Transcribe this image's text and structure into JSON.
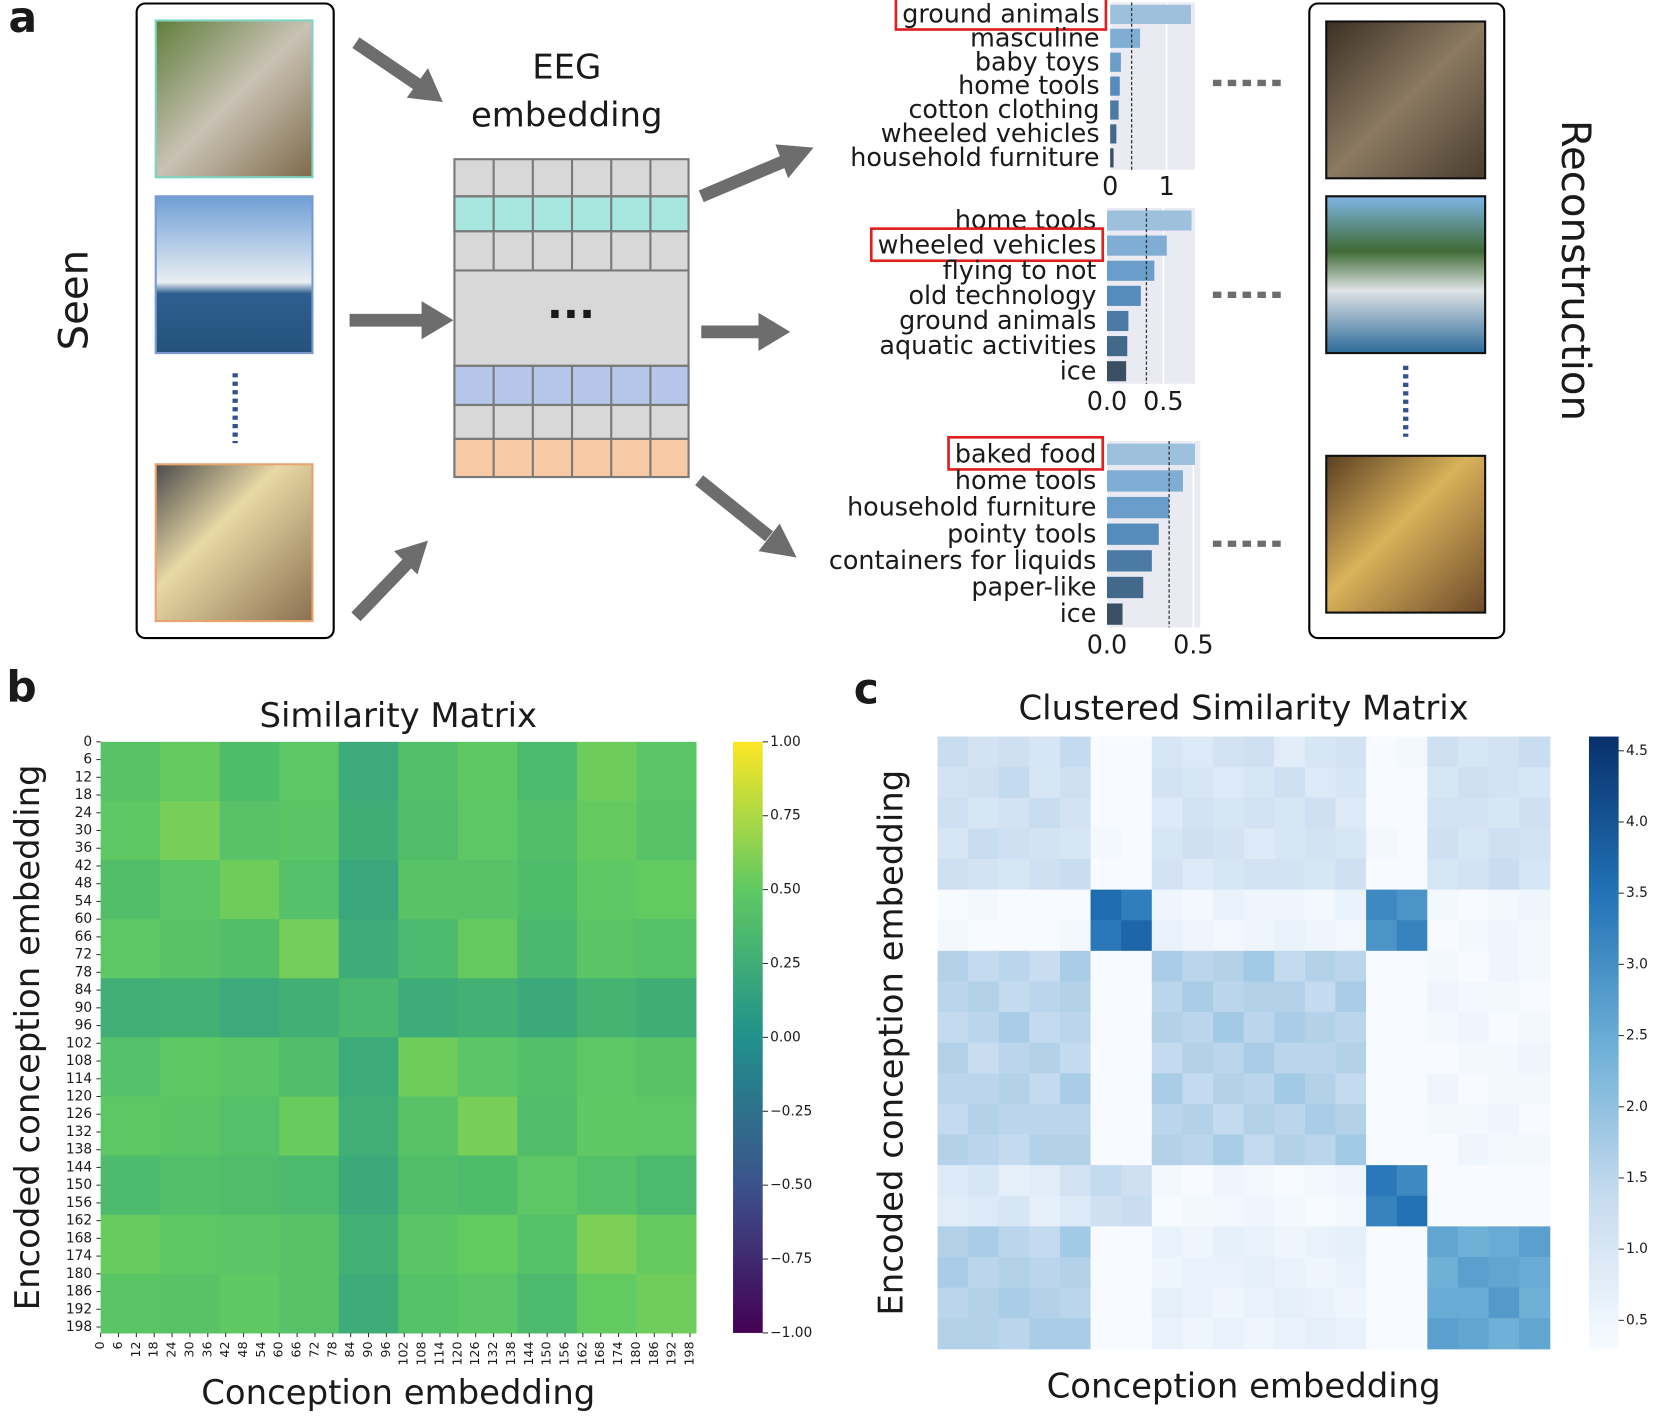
{
  "panel_labels": [
    "a",
    "b",
    "c"
  ],
  "diagram": {
    "seen_label": "Seen",
    "embedding_label_lines": [
      "EEG",
      "embedding"
    ],
    "ellipsis": "...",
    "reconstruction_label": "Reconstruction"
  },
  "chart_data": [
    {
      "type": "barh",
      "categories": [
        "ground animals",
        "masculine",
        "baby toys",
        "home tools",
        "cotton clothing",
        "wheeled vehicles",
        "household furniture"
      ],
      "values": [
        1.43,
        0.53,
        0.19,
        0.17,
        0.15,
        0.11,
        0.06
      ],
      "colors": [
        "#9dc0dd",
        "#7fadd4",
        "#6a9dc9",
        "#568cbb",
        "#4b7aa5",
        "#42688a",
        "#3a4f63"
      ],
      "xlim": [
        0,
        1.5
      ],
      "xticks": [
        0,
        1
      ],
      "reference_line": 0.38,
      "highlight": 0
    },
    {
      "type": "barh",
      "categories": [
        "home tools",
        "wheeled vehicles",
        "flying to not",
        "old technology",
        "ground animals",
        "aquatic activities",
        "ice"
      ],
      "values": [
        0.75,
        0.53,
        0.42,
        0.3,
        0.19,
        0.18,
        0.17
      ],
      "colors": [
        "#9dc0dd",
        "#7fadd4",
        "#6a9dc9",
        "#568cbb",
        "#4b7aa5",
        "#42688a",
        "#3a4f63"
      ],
      "xlim": [
        0,
        0.78
      ],
      "xticks": [
        {
          "value": 0,
          "label": "0.0"
        },
        0.5
      ],
      "reference_line": 0.35,
      "highlight": 1
    },
    {
      "type": "barh",
      "categories": [
        "baked food",
        "home tools",
        "household furniture",
        "pointy tools",
        "containers for liquids",
        "paper-like",
        "ice"
      ],
      "values": [
        0.51,
        0.44,
        0.36,
        0.3,
        0.26,
        0.21,
        0.09
      ],
      "colors": [
        "#9dc0dd",
        "#7fadd4",
        "#6a9dc9",
        "#568cbb",
        "#4b7aa5",
        "#42688a",
        "#3a4f63"
      ],
      "xlim": [
        0,
        0.54
      ],
      "xticks": [
        {
          "value": 0,
          "label": "0.0"
        },
        0.5
      ],
      "reference_line": 0.36,
      "highlight": 0
    },
    {
      "type": "heatmap",
      "title": "Similarity Matrix",
      "x_label": "Conception embedding",
      "y_label": "Encoded conception embedding",
      "xlim": [
        0,
        200
      ],
      "ylim": [
        0,
        200
      ],
      "xticks": [
        0,
        6,
        12,
        18,
        24,
        30,
        36,
        42,
        48,
        54,
        60,
        66,
        72,
        78,
        84,
        90,
        96,
        102,
        108,
        114,
        120,
        126,
        132,
        138,
        144,
        150,
        156,
        162,
        168,
        174,
        180,
        186,
        192,
        198
      ],
      "yticks": [
        0,
        6,
        12,
        18,
        24,
        30,
        36,
        42,
        48,
        54,
        60,
        66,
        72,
        78,
        84,
        90,
        96,
        102,
        108,
        114,
        120,
        126,
        132,
        138,
        144,
        150,
        156,
        162,
        168,
        174,
        180,
        186,
        192,
        198
      ],
      "colormap": "viridis",
      "clim": [
        -1,
        1
      ],
      "cticks": [
        {
          "value": 1,
          "label": "1.00"
        },
        {
          "value": 0.75,
          "label": "0.75"
        },
        {
          "value": 0.5,
          "label": "0.50"
        },
        {
          "value": 0.25,
          "label": "0.25"
        },
        {
          "value": 0,
          "label": "0.00"
        },
        {
          "value": -0.25,
          "label": "−0.25"
        },
        {
          "value": -0.5,
          "label": "−0.50"
        },
        {
          "value": -0.75,
          "label": "−0.75"
        },
        {
          "value": -1,
          "label": "−1.00"
        }
      ],
      "values": [
        [
          0.45,
          0.52,
          0.38,
          0.48,
          0.22,
          0.41,
          0.5,
          0.36,
          0.55,
          0.47
        ],
        [
          0.5,
          0.58,
          0.44,
          0.46,
          0.25,
          0.39,
          0.48,
          0.4,
          0.52,
          0.44
        ],
        [
          0.4,
          0.47,
          0.55,
          0.42,
          0.2,
          0.45,
          0.44,
          0.38,
          0.49,
          0.51
        ],
        [
          0.48,
          0.44,
          0.4,
          0.57,
          0.24,
          0.37,
          0.52,
          0.35,
          0.46,
          0.43
        ],
        [
          0.26,
          0.28,
          0.22,
          0.27,
          0.35,
          0.24,
          0.28,
          0.21,
          0.3,
          0.25
        ],
        [
          0.42,
          0.5,
          0.46,
          0.39,
          0.23,
          0.55,
          0.47,
          0.41,
          0.48,
          0.45
        ],
        [
          0.49,
          0.46,
          0.42,
          0.53,
          0.26,
          0.44,
          0.58,
          0.39,
          0.5,
          0.48
        ],
        [
          0.37,
          0.41,
          0.39,
          0.36,
          0.21,
          0.4,
          0.38,
          0.48,
          0.42,
          0.36
        ],
        [
          0.53,
          0.49,
          0.47,
          0.45,
          0.28,
          0.46,
          0.51,
          0.43,
          0.6,
          0.52
        ],
        [
          0.46,
          0.45,
          0.5,
          0.44,
          0.24,
          0.43,
          0.47,
          0.37,
          0.51,
          0.56
        ]
      ]
    },
    {
      "type": "heatmap",
      "title": "Clustered Similarity Matrix",
      "x_label": "Conception embedding",
      "y_label": "Encoded conception embedding",
      "colormap": "blues",
      "clim": [
        0.3,
        4.6
      ],
      "cticks": [
        {
          "value": 4.5,
          "label": "4.5"
        },
        {
          "value": 4,
          "label": "4.0"
        },
        {
          "value": 3.5,
          "label": "3.5"
        },
        {
          "value": 3,
          "label": "3.0"
        },
        {
          "value": 2.5,
          "label": "2.5"
        },
        {
          "value": 2,
          "label": "2.0"
        },
        {
          "value": 1.5,
          "label": "1.5"
        },
        {
          "value": 1,
          "label": "1.0"
        },
        {
          "value": 0.5,
          "label": "0.5"
        }
      ],
      "values": [
        [
          1.3,
          1.1,
          1.2,
          1.0,
          1.4,
          0.3,
          0.2,
          1.0,
          0.9,
          1.1,
          1.2,
          0.8,
          1.0,
          1.1,
          0.3,
          0.4,
          1.2,
          1.0,
          1.1,
          1.3
        ],
        [
          1.1,
          1.2,
          1.4,
          1.0,
          1.2,
          0.2,
          0.3,
          1.1,
          1.0,
          0.9,
          1.0,
          1.2,
          0.9,
          1.0,
          0.2,
          0.3,
          1.0,
          1.2,
          1.1,
          1.0
        ],
        [
          1.2,
          1.0,
          1.1,
          1.3,
          1.1,
          0.3,
          0.3,
          0.9,
          1.1,
          1.0,
          1.1,
          1.0,
          1.2,
          0.9,
          0.3,
          0.2,
          1.1,
          1.1,
          1.0,
          1.2
        ],
        [
          1.0,
          1.3,
          1.2,
          1.1,
          1.0,
          0.4,
          0.2,
          1.0,
          1.2,
          1.1,
          0.9,
          1.0,
          1.1,
          1.0,
          0.4,
          0.3,
          1.2,
          1.0,
          1.2,
          1.1
        ],
        [
          1.2,
          1.1,
          1.0,
          1.2,
          1.3,
          0.3,
          0.3,
          1.1,
          0.9,
          1.0,
          1.1,
          1.1,
          1.0,
          1.2,
          0.3,
          0.3,
          1.0,
          1.1,
          1.3,
          1.0
        ],
        [
          0.3,
          0.4,
          0.2,
          0.3,
          0.3,
          3.6,
          3.3,
          0.5,
          0.4,
          0.6,
          0.5,
          0.5,
          0.4,
          0.6,
          3.1,
          2.9,
          0.4,
          0.3,
          0.4,
          0.5
        ],
        [
          0.4,
          0.3,
          0.3,
          0.2,
          0.4,
          3.4,
          3.7,
          0.6,
          0.5,
          0.4,
          0.5,
          0.6,
          0.5,
          0.4,
          2.9,
          3.2,
          0.3,
          0.4,
          0.5,
          0.4
        ],
        [
          1.6,
          1.4,
          1.5,
          1.3,
          1.7,
          0.2,
          0.3,
          1.7,
          1.5,
          1.6,
          1.8,
          1.4,
          1.6,
          1.5,
          0.3,
          0.2,
          0.4,
          0.3,
          0.5,
          0.4
        ],
        [
          1.5,
          1.6,
          1.4,
          1.5,
          1.6,
          0.3,
          0.2,
          1.5,
          1.7,
          1.5,
          1.6,
          1.6,
          1.4,
          1.7,
          0.2,
          0.3,
          0.5,
          0.4,
          0.4,
          0.3
        ],
        [
          1.4,
          1.5,
          1.7,
          1.4,
          1.5,
          0.3,
          0.3,
          1.6,
          1.5,
          1.8,
          1.5,
          1.7,
          1.6,
          1.5,
          0.3,
          0.3,
          0.4,
          0.5,
          0.3,
          0.4
        ],
        [
          1.6,
          1.3,
          1.5,
          1.6,
          1.4,
          0.2,
          0.2,
          1.4,
          1.6,
          1.5,
          1.7,
          1.5,
          1.5,
          1.6,
          0.2,
          0.3,
          0.3,
          0.4,
          0.4,
          0.5
        ],
        [
          1.5,
          1.5,
          1.6,
          1.4,
          1.7,
          0.3,
          0.3,
          1.7,
          1.4,
          1.6,
          1.5,
          1.8,
          1.6,
          1.4,
          0.3,
          0.2,
          0.5,
          0.3,
          0.4,
          0.4
        ],
        [
          1.4,
          1.6,
          1.5,
          1.5,
          1.5,
          0.2,
          0.3,
          1.5,
          1.6,
          1.4,
          1.6,
          1.5,
          1.7,
          1.6,
          0.3,
          0.3,
          0.4,
          0.4,
          0.5,
          0.3
        ],
        [
          1.6,
          1.5,
          1.4,
          1.6,
          1.6,
          0.3,
          0.2,
          1.6,
          1.5,
          1.7,
          1.4,
          1.6,
          1.5,
          1.8,
          0.2,
          0.3,
          0.3,
          0.5,
          0.4,
          0.4
        ],
        [
          0.9,
          1.0,
          0.7,
          0.8,
          1.1,
          1.4,
          1.2,
          0.4,
          0.3,
          0.5,
          0.4,
          0.3,
          0.4,
          0.5,
          3.4,
          3.1,
          0.3,
          0.2,
          0.3,
          0.3
        ],
        [
          0.8,
          0.9,
          1.0,
          0.7,
          0.9,
          1.2,
          1.3,
          0.3,
          0.4,
          0.4,
          0.5,
          0.4,
          0.3,
          0.4,
          3.2,
          3.5,
          0.2,
          0.3,
          0.3,
          0.2
        ],
        [
          1.6,
          1.7,
          1.5,
          1.4,
          1.8,
          0.3,
          0.2,
          0.6,
          0.5,
          0.7,
          0.6,
          0.5,
          0.6,
          0.7,
          0.3,
          0.3,
          2.6,
          2.4,
          2.5,
          2.7
        ],
        [
          1.7,
          1.5,
          1.6,
          1.5,
          1.6,
          0.2,
          0.3,
          0.5,
          0.6,
          0.6,
          0.7,
          0.6,
          0.5,
          0.6,
          0.3,
          0.2,
          2.4,
          2.7,
          2.6,
          2.5
        ],
        [
          1.5,
          1.6,
          1.7,
          1.6,
          1.5,
          0.3,
          0.3,
          0.7,
          0.6,
          0.5,
          0.6,
          0.7,
          0.6,
          0.5,
          0.2,
          0.3,
          2.5,
          2.5,
          2.8,
          2.4
        ],
        [
          1.6,
          1.6,
          1.5,
          1.7,
          1.7,
          0.2,
          0.2,
          0.6,
          0.5,
          0.6,
          0.5,
          0.6,
          0.7,
          0.6,
          0.3,
          0.3,
          2.7,
          2.6,
          2.4,
          2.6
        ]
      ]
    }
  ]
}
